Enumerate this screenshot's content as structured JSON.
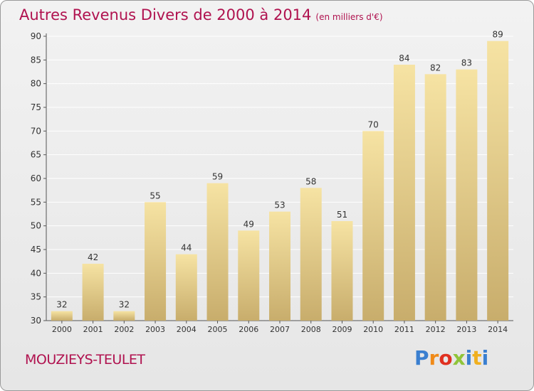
{
  "title": {
    "main": "Autres Revenus Divers de 2000 à 2014",
    "unit": "(en milliers d'€)"
  },
  "location": "MOUZIEYS-TEULET",
  "brand": {
    "text": "Proxiti",
    "colors": [
      "#3a7fd0",
      "#f08a18",
      "#e03020",
      "#8fc43a",
      "#3a7fd0",
      "#f0b020",
      "#3a7fd0"
    ]
  },
  "colors": {
    "title": "#b0124f",
    "bar_light": "#f6e3a3",
    "bar_dark": "#c8ad6c",
    "grid": "#ffffff",
    "axis_text": "#333333"
  },
  "chart_data": {
    "type": "bar",
    "title": "Autres Revenus Divers de 2000 à 2014",
    "subtitle": "(en milliers d'€)",
    "xlabel": "",
    "ylabel": "",
    "categories": [
      "2000",
      "2001",
      "2002",
      "2003",
      "2004",
      "2005",
      "2006",
      "2007",
      "2008",
      "2009",
      "2010",
      "2011",
      "2012",
      "2013",
      "2014"
    ],
    "values": [
      32,
      42,
      32,
      55,
      44,
      59,
      49,
      53,
      58,
      51,
      70,
      84,
      82,
      83,
      89
    ],
    "ylim": [
      30,
      90
    ],
    "yticks": [
      30,
      35,
      40,
      45,
      50,
      55,
      60,
      65,
      70,
      75,
      80,
      85,
      90
    ],
    "grid": true,
    "legend": "none"
  }
}
